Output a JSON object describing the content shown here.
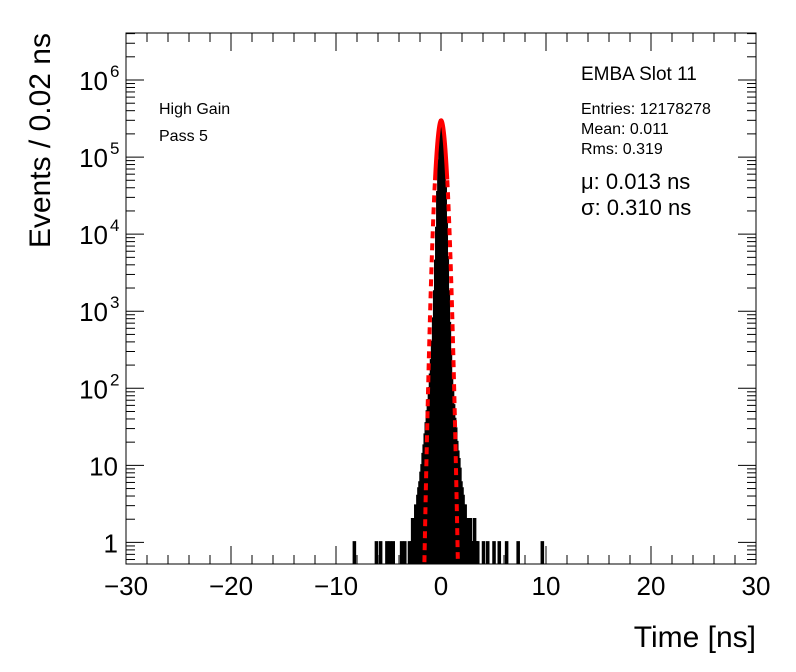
{
  "chart_data": {
    "type": "bar",
    "title": "EMBA Slot 11",
    "xlabel": "Time [ns]",
    "ylabel": "Events / 0.02 ns",
    "xlim": [
      -30,
      30
    ],
    "ylim_log10": [
      -0.28,
      6.61
    ],
    "yscale": "log",
    "x_ticks": [
      -30,
      -20,
      -10,
      0,
      10,
      20,
      30
    ],
    "x_tick_labels": [
      "−30",
      "−20",
      "−10",
      "0",
      "10",
      "20",
      "30"
    ],
    "y_ticks": [
      1,
      10,
      100,
      1000,
      10000,
      100000,
      1000000
    ],
    "y_tick_labels": [
      {
        "base": "1",
        "exp": ""
      },
      {
        "base": "10",
        "exp": ""
      },
      {
        "base": "10",
        "exp": "2"
      },
      {
        "base": "10",
        "exp": "3"
      },
      {
        "base": "10",
        "exp": "4"
      },
      {
        "base": "10",
        "exp": "5"
      },
      {
        "base": "10",
        "exp": "6"
      }
    ],
    "annotations": {
      "gain": "High Gain",
      "pass": "Pass 5",
      "entries": "Entries: 12178278",
      "mean": "Mean: 0.011",
      "rms": "Rms: 0.319",
      "mu": "μ: 0.013 ns",
      "sigma": "σ: 0.310 ns"
    },
    "histogram": {
      "bin_width": 0.1,
      "x_start": -3.0,
      "counts": [
        1,
        0,
        1,
        2,
        1,
        2,
        3,
        2,
        4,
        5,
        6,
        8,
        10,
        14,
        18,
        25,
        35,
        50,
        70,
        100,
        150,
        230,
        400,
        800,
        1800,
        4500,
        12000,
        35000,
        90000,
        180000,
        300000,
        260000,
        190000,
        100000,
        45000,
        15000,
        5000,
        1800,
        700,
        300,
        150,
        90,
        60,
        40,
        30,
        20,
        15,
        12,
        9,
        6,
        5,
        4,
        3,
        3,
        2,
        2,
        2,
        1,
        2,
        1,
        1,
        1,
        2,
        1,
        1,
        1
      ],
      "isolated_entries": [
        [
          -8.3,
          1
        ],
        [
          -6.2,
          1
        ],
        [
          -5.8,
          1
        ],
        [
          -5.2,
          1
        ],
        [
          -4.9,
          1
        ],
        [
          -4.6,
          1
        ],
        [
          -3.8,
          1
        ],
        [
          -3.5,
          1
        ],
        [
          4.0,
          1
        ],
        [
          4.4,
          1
        ],
        [
          5.0,
          1
        ],
        [
          5.5,
          1
        ],
        [
          6.2,
          1
        ],
        [
          7.3,
          1
        ],
        [
          9.6,
          1
        ]
      ]
    },
    "fit": {
      "function": "gaussian",
      "amplitude": 300000,
      "mu": 0.013,
      "sigma": 0.31,
      "color": "#ff0000"
    },
    "histogram_color": "#000000"
  }
}
